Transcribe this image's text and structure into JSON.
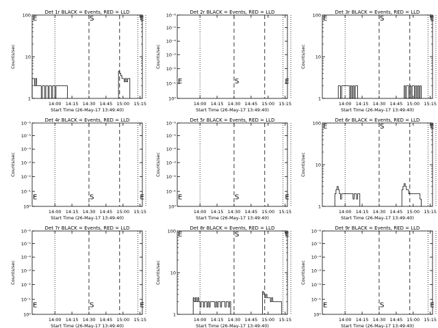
{
  "figure": {
    "xlabel": "Start Time (26-May-17 13:49:40)",
    "ylabel": "Counts/sec",
    "x_range_min": [
      -10,
      22
    ],
    "x_tick_labels": [
      "14:00",
      "14:15",
      "14:30",
      "14:45",
      "15:00",
      "15:15"
    ],
    "x_tick_minutes": [
      10,
      25,
      40,
      55,
      70,
      85
    ],
    "S_time": 40,
    "E_time": 83,
    "dashed_times": [
      40,
      67
    ],
    "dotted_times": [
      10,
      83
    ],
    "marker_S": "S",
    "marker_E": "E"
  },
  "chart_data": [
    {
      "type": "line",
      "title": "Det 1r BLACK = Events, RED = LLD",
      "yscale": "log",
      "ylim": [
        1,
        100
      ],
      "y_tick_labels": [
        "1",
        "10",
        "100"
      ],
      "y_tick_values": [
        1,
        10,
        100
      ],
      "S_y": 100,
      "E_y": 100,
      "x": [
        -10,
        -9,
        -8,
        -7,
        -6,
        -5,
        -4,
        -3,
        -2,
        -1,
        0,
        1,
        2,
        3,
        4,
        5,
        6,
        7,
        8,
        9,
        10,
        11,
        12,
        13,
        14,
        15,
        16,
        17,
        18,
        19,
        20
      ],
      "y": [
        3,
        3,
        2,
        3,
        2,
        2,
        2,
        2,
        1,
        2,
        2,
        1,
        2,
        2,
        1,
        2,
        2,
        1,
        2,
        2,
        1,
        2,
        2,
        2,
        2,
        2,
        2,
        2,
        2,
        2,
        2
      ],
      "x2": [
        66,
        67,
        68,
        69,
        70,
        71,
        72,
        73,
        74,
        75
      ],
      "y2": [
        4.5,
        4,
        3.5,
        3,
        3,
        2.5,
        3,
        2.5,
        3,
        3
      ]
    },
    {
      "type": "line",
      "title": "Det 2r BLACK = Events, RED = LLD",
      "yscale": "log",
      "ylim": [
        0.9,
        1.1
      ],
      "y_tick_labels": [
        "10⁰",
        "10⁻¹",
        "10⁻²",
        "10⁻³",
        "10⁻⁴",
        "10⁻⁵",
        "10⁻⁶"
      ],
      "y_tick_values": [
        0.9,
        0.933,
        0.967,
        1.0,
        1.033,
        1.067,
        1.1
      ],
      "S_y": 0.93,
      "E_y": 0.93
    },
    {
      "type": "line",
      "title": "Det 3r BLACK = Events, RED = LLD",
      "yscale": "log",
      "ylim": [
        1,
        100
      ],
      "y_tick_labels": [
        "1",
        "10",
        "100"
      ],
      "y_tick_values": [
        1,
        10,
        100
      ],
      "S_y": 100,
      "E_y": 100,
      "x": [
        4,
        5,
        6,
        7,
        13,
        14,
        15,
        16,
        17,
        18,
        19,
        20,
        21
      ],
      "y": [
        2,
        2,
        1,
        2,
        2,
        1,
        2,
        1,
        2,
        1,
        2,
        2,
        1
      ],
      "x2": [
        62,
        63,
        64,
        65,
        66,
        67,
        68,
        69,
        70,
        71,
        72,
        73,
        74,
        75,
        76
      ],
      "y2": [
        2,
        1,
        2,
        2,
        1,
        2,
        1,
        2,
        2,
        1,
        2,
        1,
        2,
        1,
        2
      ]
    },
    {
      "type": "line",
      "title": "Det 4r BLACK = Events, RED = LLD",
      "yscale": "log",
      "ylim": [
        0.9,
        1.1
      ],
      "y_tick_labels": [
        "10⁰",
        "10⁻¹",
        "10⁻²",
        "10⁻³",
        "10⁻⁴",
        "10⁻⁵",
        "10⁻⁶"
      ],
      "y_tick_values": [
        0.9,
        0.933,
        0.967,
        1.0,
        1.033,
        1.067,
        1.1
      ],
      "S_y": 0.913,
      "E_y": 0.913
    },
    {
      "type": "line",
      "title": "Det 5r BLACK = Events, RED = LLD",
      "yscale": "log",
      "ylim": [
        0.9,
        1.1
      ],
      "y_tick_labels": [
        "10⁰",
        "10⁻¹",
        "10⁻²",
        "10⁻³",
        "10⁻⁴",
        "10⁻⁵",
        "10⁻⁶"
      ],
      "y_tick_values": [
        0.9,
        0.933,
        0.967,
        1.0,
        1.033,
        1.067,
        1.1
      ],
      "S_y": 0.913,
      "E_y": 0.913
    },
    {
      "type": "line",
      "title": "Det 6r BLACK = Events, RED = LLD",
      "yscale": "log",
      "ylim": [
        1,
        100
      ],
      "y_tick_labels": [
        "1",
        "10",
        "100"
      ],
      "y_tick_values": [
        1,
        10,
        100
      ],
      "S_y": 100,
      "E_y": 100,
      "x": [
        1,
        2,
        3,
        4,
        5,
        6,
        7,
        8,
        16,
        17,
        18,
        19,
        20,
        21,
        22
      ],
      "y": [
        2,
        2.5,
        3,
        2.5,
        2,
        1.5,
        2,
        2,
        2,
        1.5,
        2,
        2,
        1.5,
        2,
        2
      ],
      "x2": [
        60,
        61,
        62,
        63,
        64,
        65,
        66,
        67,
        68,
        69,
        70,
        71,
        72,
        73,
        74,
        75,
        76
      ],
      "y2": [
        2.5,
        3,
        3.5,
        3,
        2.5,
        2.5,
        2,
        2,
        2,
        2,
        2,
        2,
        2,
        2,
        2,
        2,
        1.5
      ]
    },
    {
      "type": "line",
      "title": "Det 7r BLACK = Events, RED = LLD",
      "yscale": "log",
      "ylim": [
        0.9,
        1.1
      ],
      "y_tick_labels": [
        "10⁰",
        "10⁻¹",
        "10⁻²",
        "10⁻³",
        "10⁻⁴",
        "10⁻⁵",
        "10⁻⁶"
      ],
      "y_tick_values": [
        0.9,
        0.933,
        0.967,
        1.0,
        1.033,
        1.067,
        1.1
      ],
      "S_y": 0.913,
      "E_y": 0.913
    },
    {
      "type": "line",
      "title": "Det 8r BLACK = Events, RED = LLD",
      "yscale": "log",
      "ylim": [
        1,
        100
      ],
      "y_tick_labels": [
        "1",
        "10",
        "100"
      ],
      "y_tick_values": [
        1,
        10,
        100
      ],
      "S_y": 100,
      "E_y": 100,
      "x": [
        4,
        5,
        6,
        7,
        8,
        9,
        10,
        11,
        12,
        13,
        14,
        15,
        16,
        17,
        18,
        19,
        20,
        21,
        22,
        23,
        24,
        25,
        26,
        27,
        28,
        29,
        30,
        31,
        32,
        33,
        34,
        35,
        36
      ],
      "y": [
        2.5,
        2,
        2.5,
        2,
        2.5,
        2,
        1.5,
        2,
        2,
        1.5,
        2,
        2,
        1.5,
        2,
        1.5,
        2,
        2,
        2,
        2,
        1.5,
        2,
        1.5,
        2,
        2,
        1.5,
        2,
        2,
        2,
        1.5,
        2,
        2,
        1.5,
        2
      ],
      "x2": [
        65,
        66,
        67,
        68,
        69,
        70,
        71,
        72,
        73,
        74,
        75,
        76,
        77,
        78,
        79,
        80,
        81
      ],
      "y2": [
        3.5,
        3,
        2.5,
        3,
        2.5,
        2.5,
        2.5,
        2,
        2.5,
        2,
        2,
        2,
        2,
        2,
        2,
        2,
        2
      ]
    },
    {
      "type": "line",
      "title": "Det 9r BLACK = Events, RED = LLD",
      "yscale": "log",
      "ylim": [
        0.9,
        1.1
      ],
      "y_tick_labels": [
        "10⁰",
        "10⁻¹",
        "10⁻²",
        "10⁻³",
        "10⁻⁴",
        "10⁻⁵",
        "10⁻⁶"
      ],
      "y_tick_values": [
        0.9,
        0.933,
        0.967,
        1.0,
        1.033,
        1.067,
        1.1
      ],
      "S_y": 0.913,
      "E_y": 0.913
    }
  ]
}
